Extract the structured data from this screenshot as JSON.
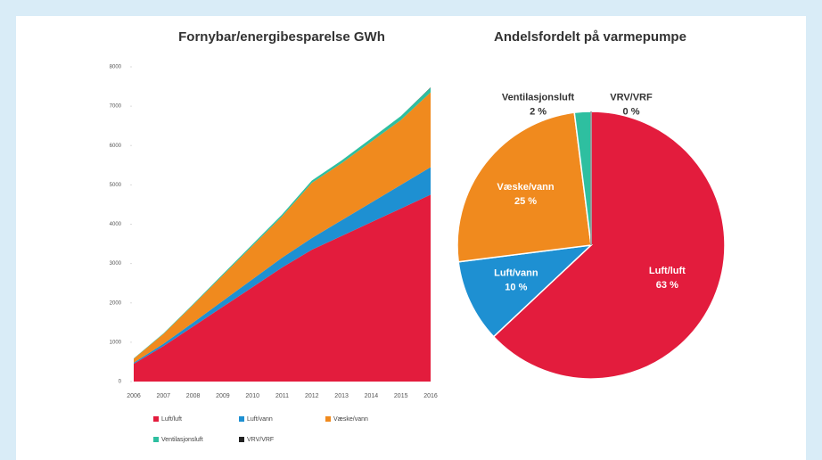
{
  "chart_data": [
    {
      "type": "stacked_area",
      "title": "Fornybar/energibesparelse GWh",
      "x": [
        2006,
        2007,
        2008,
        2009,
        2010,
        2011,
        2012,
        2013,
        2014,
        2015,
        2016
      ],
      "xlim": [
        2006,
        2016
      ],
      "xticks": [
        2006,
        2007,
        2008,
        2009,
        2010,
        2011,
        2012,
        2013,
        2014,
        2015,
        2016
      ],
      "ylim": [
        0,
        8000
      ],
      "yticks": [
        0,
        1000,
        2000,
        3000,
        4000,
        5000,
        6000,
        7000,
        8000
      ],
      "series": [
        {
          "name": "Luft/luft",
          "color": "#e31c3d",
          "values": [
            450,
            900,
            1400,
            1900,
            2400,
            2900,
            3350,
            3700,
            4050,
            4400,
            4750
          ]
        },
        {
          "name": "Luft/vann",
          "color": "#1e90d2",
          "values": [
            30,
            60,
            100,
            150,
            200,
            250,
            300,
            400,
            500,
            600,
            700
          ]
        },
        {
          "name": "Væske/vann",
          "color": "#f08a1e",
          "values": [
            100,
            250,
            450,
            650,
            850,
            1050,
            1400,
            1450,
            1550,
            1650,
            1900
          ]
        },
        {
          "name": "Ventilasjonsluft",
          "color": "#2ebfa0",
          "values": [
            10,
            15,
            20,
            30,
            40,
            50,
            60,
            70,
            80,
            100,
            120
          ]
        },
        {
          "name": "VRV/VRF",
          "color": "#222222",
          "values": [
            0,
            0,
            0,
            0,
            0,
            0,
            0,
            0,
            0,
            0,
            10
          ]
        }
      ]
    },
    {
      "type": "pie",
      "title": "Andelsfordelt på varmepumpe",
      "categories": [
        "Luft/luft",
        "Luft/vann",
        "Væske/vann",
        "Ventilasjonsluft",
        "VRV/VRF"
      ],
      "values": [
        63,
        10,
        25,
        2,
        0
      ],
      "value_labels": [
        "63 %",
        "10 %",
        "25 %",
        "2 %",
        "0 %"
      ],
      "colors": [
        "#e31c3d",
        "#1e90d2",
        "#f08a1e",
        "#2ebfa0",
        "#888888"
      ]
    }
  ]
}
